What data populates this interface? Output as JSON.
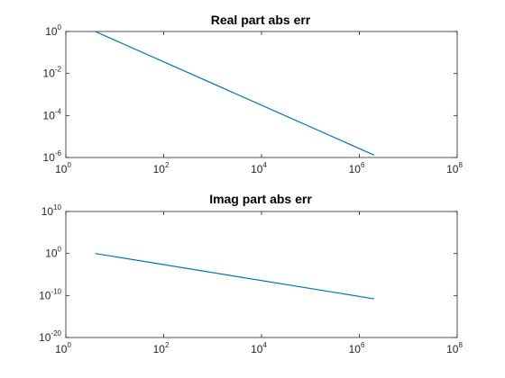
{
  "chart_data": [
    {
      "type": "line",
      "title": "Real part abs err",
      "xscale": "log",
      "yscale": "log",
      "xlim": [
        1,
        100000000
      ],
      "ylim": [
        1e-06,
        1
      ],
      "x_tick_exponents": [
        0,
        2,
        4,
        6,
        8
      ],
      "y_tick_exponents": [
        -6,
        -4,
        -2,
        0
      ],
      "tick_base": "10",
      "grid": false,
      "series": [
        {
          "color": "#0072BD",
          "x": [
            4,
            2000000
          ],
          "y": [
            1,
            1.3e-06
          ]
        }
      ]
    },
    {
      "type": "line",
      "title": "Imag part abs err",
      "xscale": "log",
      "yscale": "log",
      "xlim": [
        1,
        100000000
      ],
      "ylim": [
        1e-20,
        10000000000
      ],
      "x_tick_exponents": [
        0,
        2,
        4,
        6,
        8
      ],
      "y_tick_exponents": [
        -20,
        -10,
        0,
        10
      ],
      "tick_base": "10",
      "grid": false,
      "series": [
        {
          "color": "#0072BD",
          "x": [
            4,
            2000000
          ],
          "y": [
            1,
            1.6e-11
          ]
        }
      ]
    }
  ]
}
